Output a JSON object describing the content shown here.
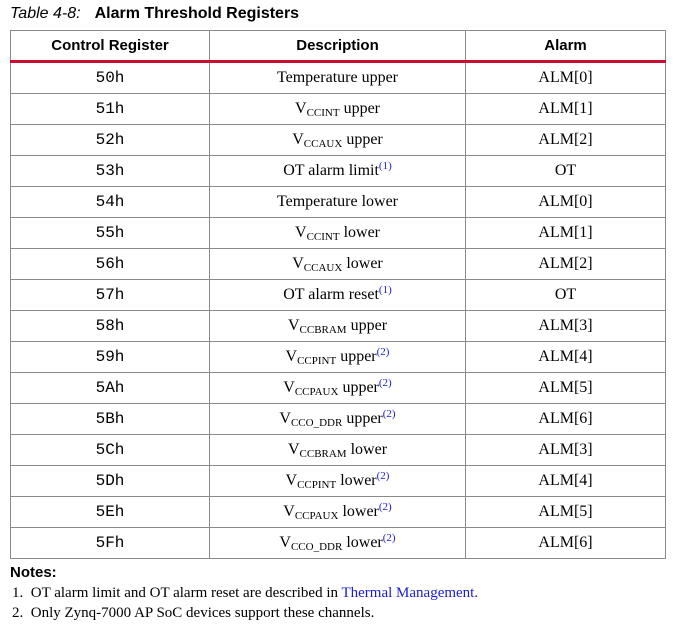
{
  "caption": {
    "number": "Table 4-8:",
    "title": "Alarm Threshold Registers"
  },
  "headers": [
    "Control Register",
    "Description",
    "Alarm"
  ],
  "rows": [
    {
      "reg": "50h",
      "desc": "Temperature upper",
      "v": "",
      "sub": "",
      "tail": "",
      "ref": "",
      "alarm": "ALM[0]"
    },
    {
      "reg": "51h",
      "desc": "",
      "v": "V",
      "sub": "CCINT",
      "tail": " upper",
      "ref": "",
      "alarm": "ALM[1]"
    },
    {
      "reg": "52h",
      "desc": "",
      "v": "V",
      "sub": "CCAUX",
      "tail": " upper",
      "ref": "",
      "alarm": "ALM[2]"
    },
    {
      "reg": "53h",
      "desc": "OT alarm limit",
      "v": "",
      "sub": "",
      "tail": "",
      "ref": "(1)",
      "alarm": "OT"
    },
    {
      "reg": "54h",
      "desc": "Temperature lower",
      "v": "",
      "sub": "",
      "tail": "",
      "ref": "",
      "alarm": "ALM[0]"
    },
    {
      "reg": "55h",
      "desc": "",
      "v": "V",
      "sub": "CCINT",
      "tail": " lower",
      "ref": "",
      "alarm": "ALM[1]"
    },
    {
      "reg": "56h",
      "desc": "",
      "v": "V",
      "sub": "CCAUX",
      "tail": " lower",
      "ref": "",
      "alarm": "ALM[2]"
    },
    {
      "reg": "57h",
      "desc": "OT alarm reset",
      "v": "",
      "sub": "",
      "tail": "",
      "ref": "(1)",
      "alarm": "OT"
    },
    {
      "reg": "58h",
      "desc": "",
      "v": "V",
      "sub": "CCBRAM",
      "tail": " upper",
      "ref": "",
      "alarm": "ALM[3]"
    },
    {
      "reg": "59h",
      "desc": "",
      "v": "V",
      "sub": "CCPINT",
      "tail": " upper",
      "ref": "(2)",
      "alarm": "ALM[4]"
    },
    {
      "reg": "5Ah",
      "desc": "",
      "v": "V",
      "sub": "CCPAUX",
      "tail": " upper",
      "ref": "(2)",
      "alarm": "ALM[5]"
    },
    {
      "reg": "5Bh",
      "desc": "",
      "v": "V",
      "sub": "CCO_DDR",
      "tail": " upper",
      "ref": "(2)",
      "alarm": "ALM[6]"
    },
    {
      "reg": "5Ch",
      "desc": "",
      "v": "V",
      "sub": "CCBRAM",
      "tail": " lower",
      "ref": "",
      "alarm": "ALM[3]"
    },
    {
      "reg": "5Dh",
      "desc": "",
      "v": "V",
      "sub": "CCPINT",
      "tail": " lower",
      "ref": "(2)",
      "alarm": "ALM[4]"
    },
    {
      "reg": "5Eh",
      "desc": "",
      "v": "V",
      "sub": "CCPAUX",
      "tail": " lower",
      "ref": "(2)",
      "alarm": "ALM[5]"
    },
    {
      "reg": "5Fh",
      "desc": "",
      "v": "V",
      "sub": "CCO_DDR",
      "tail": " lower",
      "ref": "(2)",
      "alarm": "ALM[6]"
    }
  ],
  "notes": {
    "heading": "Notes:",
    "n1_prefix": "1.",
    "n1_text": "OT alarm limit and OT alarm reset are described in ",
    "n1_link": "Thermal Management.",
    "n2_prefix": "2.",
    "n2_text": "Only Zynq-7000 AP SoC devices support these channels."
  },
  "colors": {
    "header_rule": "#c8102e",
    "link": "#1a1adb"
  }
}
